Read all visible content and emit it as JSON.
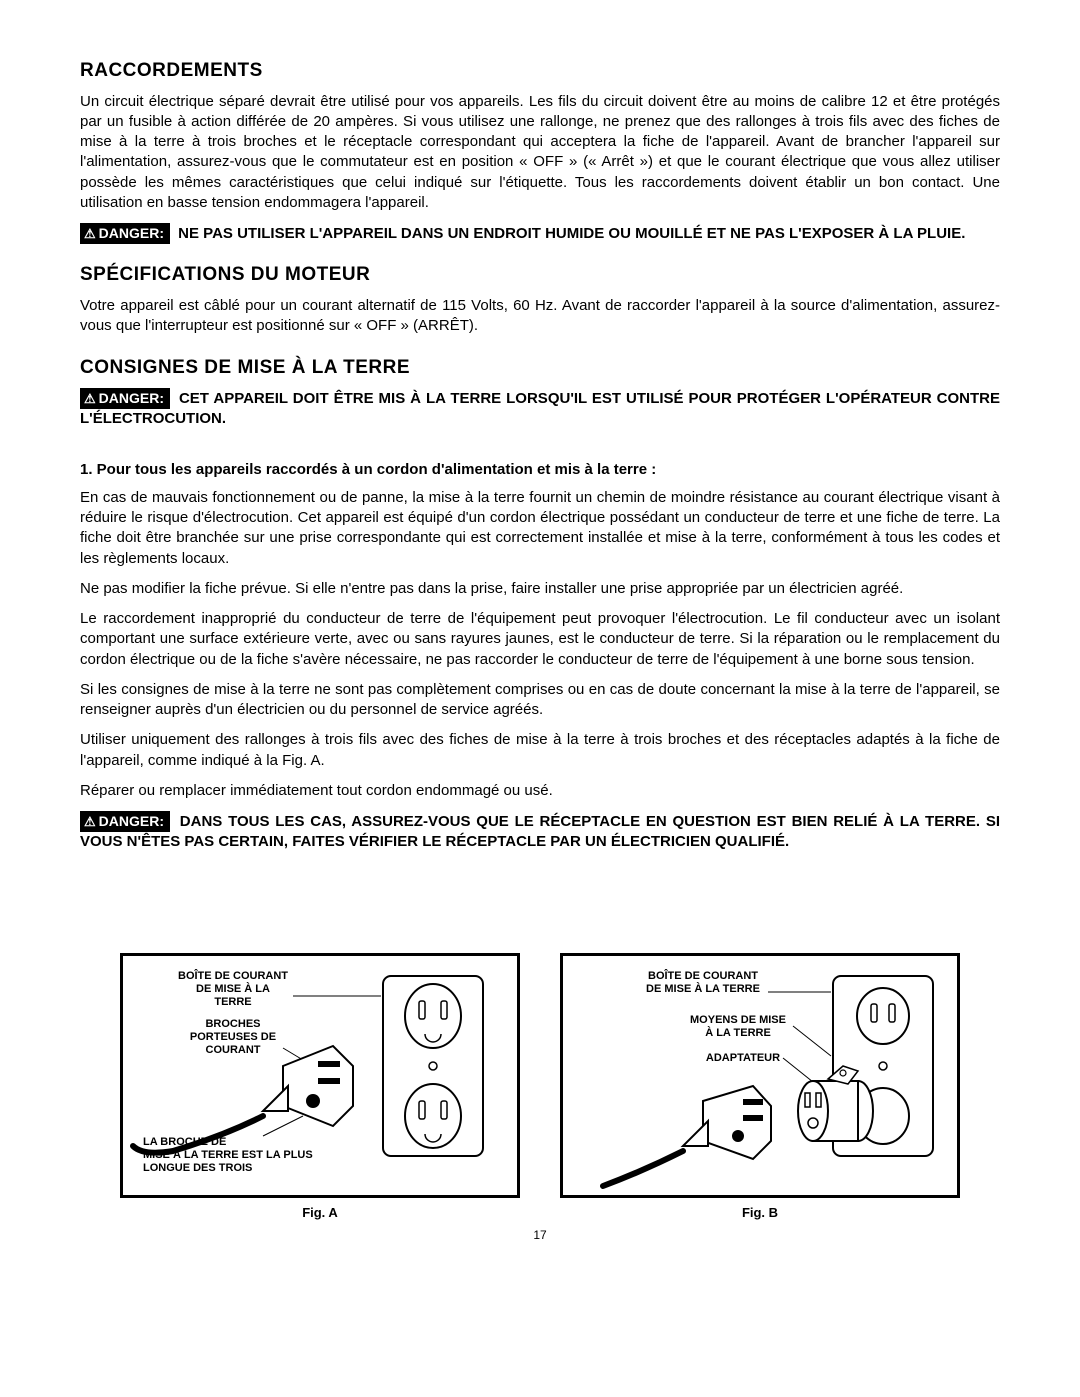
{
  "page_number": "17",
  "sections": {
    "raccordements": {
      "title": "RACCORDEMENTS",
      "body": "Un circuit électrique séparé devrait être utilisé pour vos appareils. Les fils du circuit doivent être au moins de calibre 12 et être protégés par un fusible à action différée de 20 ampères. Si vous utilisez une rallonge, ne prenez que des rallonges à trois fils avec des fiches de mise à la terre à trois broches et le réceptacle correspondant qui acceptera la fiche de l'appareil. Avant de brancher l'appareil sur l'alimentation, assurez-vous que le commutateur est en position « OFF » (« Arrêt ») et que le courant électrique que vous allez utiliser possède les mêmes caractéristiques que celui indiqué sur l'étiquette. Tous les raccordements doivent établir un bon contact. Une utilisation en basse tension endommagera l'appareil.",
      "danger": "NE PAS UTILISER L'APPAREIL DANS UN ENDROIT HUMIDE OU MOUILLÉ ET NE PAS L'EXPOSER À LA PLUIE."
    },
    "specs": {
      "title": "SPÉCIFICATIONS DU MOTEUR",
      "body": "Votre appareil est câblé pour un courant alternatif de 115 Volts, 60 Hz. Avant de raccorder l'appareil à la source d'alimentation, assurez-vous que l'interrupteur est positionné sur « OFF » (ARRÊT)."
    },
    "grounding": {
      "title": "CONSIGNES DE MISE À LA TERRE",
      "danger1": "CET APPAREIL DOIT ÊTRE MIS À LA TERRE LORSQU'IL EST UTILISÉ POUR PROTÉGER L'OPÉRATEUR CONTRE L'ÉLECTROCUTION.",
      "list_intro": "1.  Pour tous les appareils raccordés à un cordon d'alimentation et mis à la terre :",
      "p1": "En cas de mauvais fonctionnement ou de panne, la mise à la terre fournit un chemin de moindre résistance au courant électrique visant à réduire le risque d'électrocution. Cet appareil est équipé d'un cordon électrique possédant un conducteur de terre et une fiche de terre. La fiche doit être branchée sur une prise correspondante qui est correctement installée et mise à la terre, conformément à tous les codes et les règlements locaux.",
      "p2": "Ne pas modifier la fiche prévue. Si elle n'entre pas dans la prise, faire installer une prise appropriée par un électricien agréé.",
      "p3": "Le raccordement inapproprié du conducteur de terre de l'équipement peut provoquer l'électrocution. Le fil conducteur avec un isolant comportant une surface extérieure verte, avec ou sans rayures jaunes, est le conducteur de terre. Si la réparation ou le remplacement du cordon électrique ou de la fiche s'avère nécessaire, ne pas raccorder le conducteur de terre de l'équipement à une borne sous tension.",
      "p4": "Si les consignes de mise à la terre ne sont pas complètement comprises ou en cas de doute concernant la mise à la terre de l'appareil, se renseigner auprès d'un électricien ou du personnel de service agréés.",
      "p5": "Utiliser uniquement des rallonges à trois fils avec des fiches de mise à la terre à trois broches et des réceptacles adaptés à la fiche de l'appareil, comme indiqué à la Fig. A.",
      "p6": "Réparer ou remplacer immédiatement tout cordon endommagé ou usé.",
      "danger2": "DANS TOUS LES CAS, ASSUREZ-VOUS QUE LE RÉCEPTACLE EN QUESTION EST BIEN RELIÉ À LA TERRE. SI VOUS N'ÊTES PAS CERTAIN, FAITES VÉRIFIER LE RÉCEPTACLE PAR UN ÉLECTRICIEN QUALIFIÉ."
    }
  },
  "danger_label": "DANGER:",
  "figures": {
    "a": {
      "caption": "Fig. A",
      "labels": {
        "outlet_box": "BOÎTE DE COURANT\nDE MISE À LA\nTERRE",
        "prongs": "BROCHES\nPORTEUSES DE\nCOURANT",
        "ground_pin": "LA BROCHE DE\nMISE À LA TERRE EST LA PLUS\nLONGUE DES TROIS"
      }
    },
    "b": {
      "caption": "Fig. B",
      "labels": {
        "outlet_box": "BOÎTE DE COURANT\nDE MISE À LA TERRE",
        "ground_means": "MOYENS DE MISE\nÀ LA TERRE",
        "adapter": "ADAPTATEUR"
      }
    }
  },
  "colors": {
    "text": "#000000",
    "bg": "#ffffff",
    "danger_bg": "#000000",
    "danger_fg": "#ffffff"
  }
}
